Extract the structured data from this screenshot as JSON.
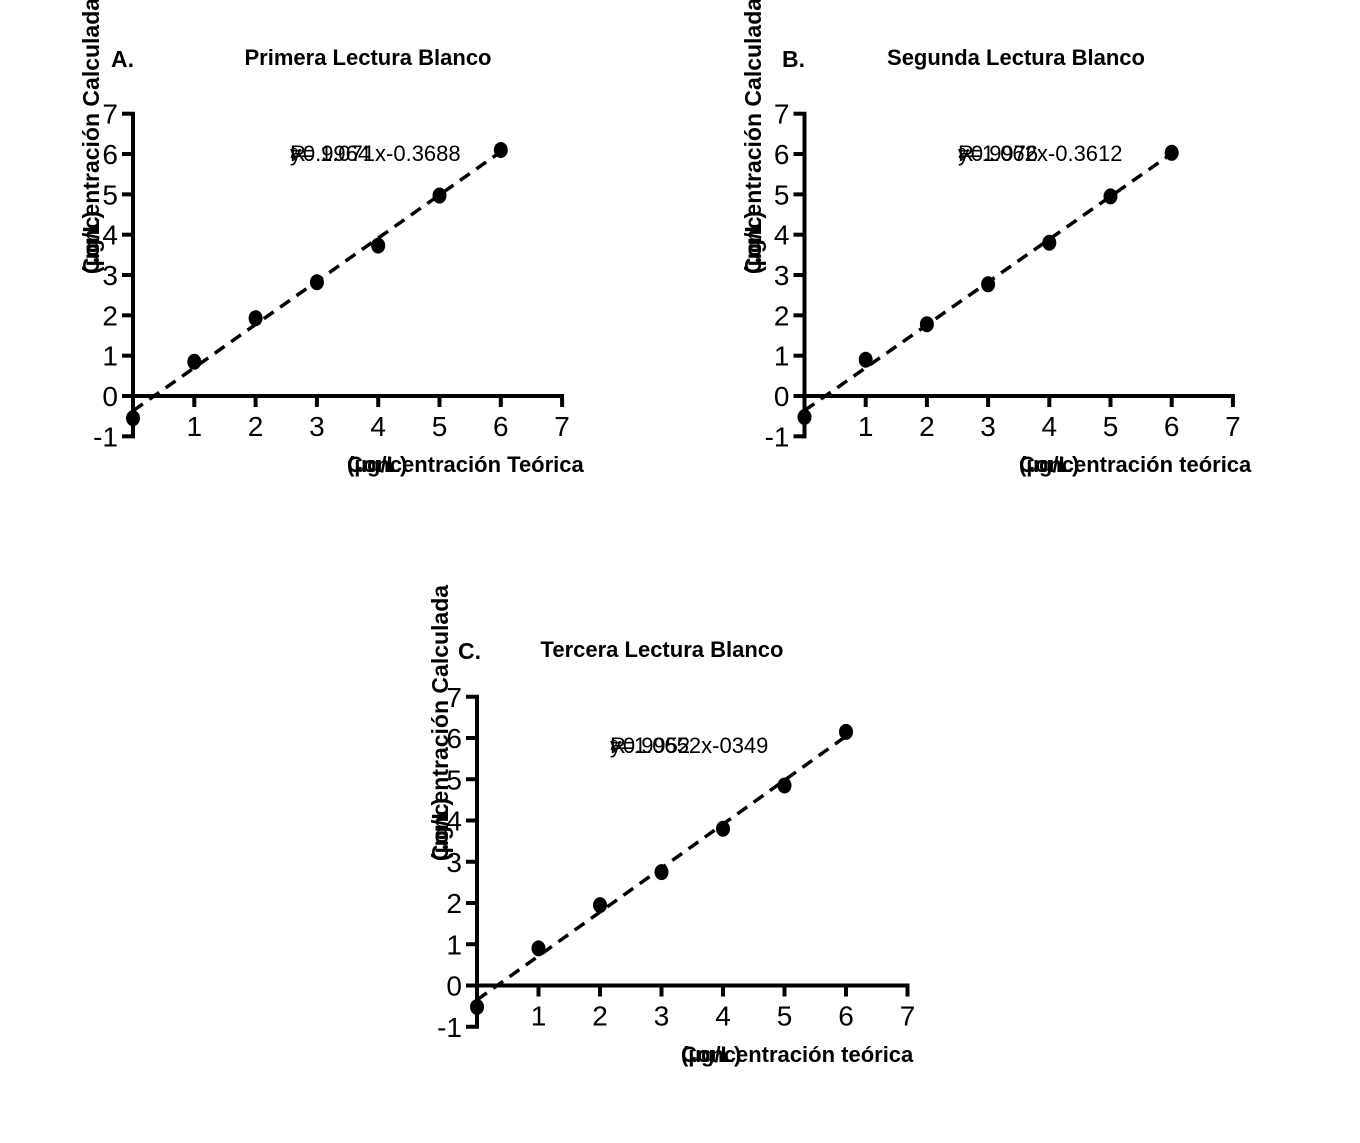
{
  "figure": {
    "background_color": "#ffffff",
    "ink_color": "#000000"
  },
  "chart_data": [
    {
      "id": "A",
      "type": "scatter",
      "panel_label": "A.",
      "title": "Primera Lectura Blanco",
      "equation": "y= 1.071x-0.3688",
      "r2": {
        "base": "R",
        "sup": "2",
        "rest": "=0.9964"
      },
      "xlabel": "Concentración Teórica",
      "xlabel_units": "(µg/L)",
      "ylabel": "Concentración Calculada",
      "ylabel_units": "(µg/L)",
      "x": [
        0,
        1,
        2,
        3,
        4,
        5,
        6
      ],
      "y": [
        -0.55,
        0.85,
        1.93,
        2.82,
        3.73,
        4.97,
        6.1
      ],
      "fit": {
        "slope": 1.071,
        "intercept": -0.3688,
        "x_start": 0,
        "x_end": 6.1,
        "style": "dashed"
      },
      "xlim": [
        0,
        7
      ],
      "ylim": [
        -1,
        7
      ],
      "xticks": [
        1,
        2,
        3,
        4,
        5,
        6,
        7
      ],
      "yticks": [
        -1,
        0,
        1,
        2,
        3,
        4,
        5,
        6,
        7
      ],
      "marker": "filled-circle",
      "grid": false,
      "legend": "none"
    },
    {
      "id": "B",
      "type": "scatter",
      "panel_label": "B.",
      "title": "Segunda Lectura Blanco",
      "equation": "y=1.062x-0.3612",
      "r2": {
        "base": "R",
        "sup": "2",
        "rest": "=0.9976"
      },
      "xlabel": "Concentración teórica",
      "xlabel_units": "(µg/L)",
      "ylabel": "Concentración Calculada",
      "ylabel_units": "(µg/L)",
      "x": [
        0,
        1,
        2,
        3,
        4,
        5,
        6
      ],
      "y": [
        -0.52,
        0.9,
        1.78,
        2.77,
        3.8,
        4.95,
        6.03
      ],
      "fit": {
        "slope": 1.062,
        "intercept": -0.3612,
        "x_start": 0,
        "x_end": 6.1,
        "style": "dashed"
      },
      "xlim": [
        0,
        7
      ],
      "ylim": [
        -1,
        7
      ],
      "xticks": [
        1,
        2,
        3,
        4,
        5,
        6,
        7
      ],
      "yticks": [
        -1,
        0,
        1,
        2,
        3,
        4,
        5,
        6,
        7
      ],
      "marker": "filled-circle",
      "grid": false,
      "legend": "none"
    },
    {
      "id": "C",
      "type": "scatter",
      "panel_label": "C.",
      "title": "Tercera Lectura Blanco",
      "equation": "y=1.0652x-0349",
      "r2": {
        "base": "R",
        "sup": "2",
        "rest": "=0.9952"
      },
      "xlabel": "Concentración teórica",
      "xlabel_units": "(µg/L)",
      "ylabel": "Concentración Calculada",
      "ylabel_units": "(µg/L)",
      "x": [
        0,
        1,
        2,
        3,
        4,
        5,
        6
      ],
      "y": [
        -0.52,
        0.9,
        1.95,
        2.75,
        3.8,
        4.85,
        6.15
      ],
      "fit": {
        "slope": 1.0652,
        "intercept": -0.349,
        "x_start": 0,
        "x_end": 6.05,
        "style": "dashed"
      },
      "xlim": [
        0,
        7
      ],
      "ylim": [
        -1,
        7
      ],
      "xticks": [
        1,
        2,
        3,
        4,
        5,
        6,
        7
      ],
      "yticks": [
        -1,
        0,
        1,
        2,
        3,
        4,
        5,
        6,
        7
      ],
      "marker": "filled-circle",
      "grid": false,
      "legend": "none"
    }
  ]
}
